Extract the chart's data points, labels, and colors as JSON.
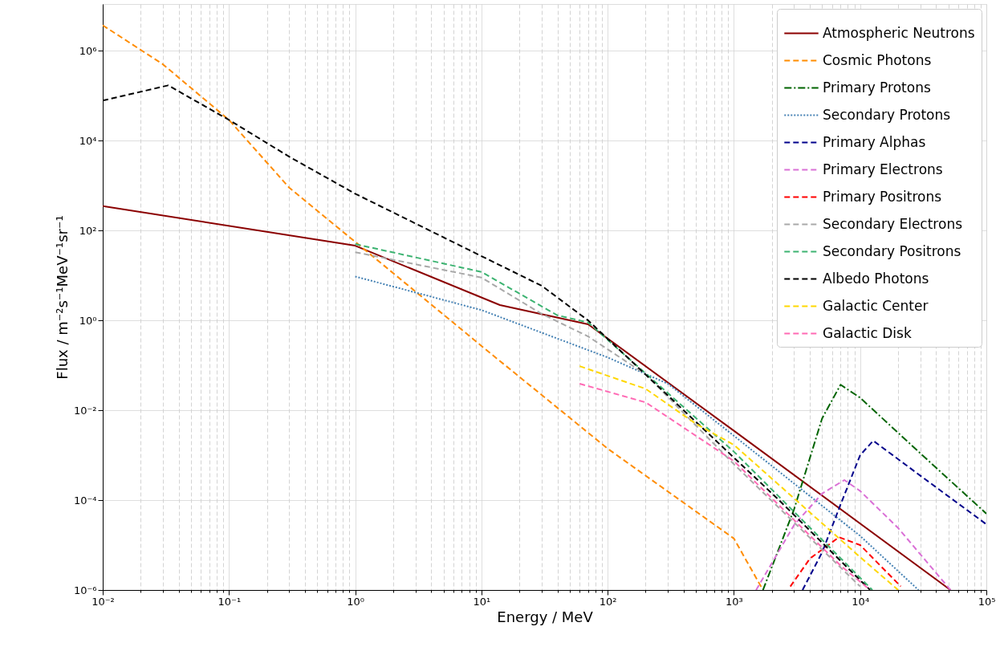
{
  "chart_data": {
    "type": "line",
    "xlabel": "Energy / MeV",
    "ylabel": "Flux / m⁻²s⁻¹MeV⁻¹sr⁻¹",
    "log": "xy",
    "grid": true,
    "legend": "top right",
    "xlim": [
      0.01,
      100000
    ],
    "ylim": [
      1e-06,
      11000000.0
    ],
    "xticks": [
      {
        "value": 0.01,
        "label": "10⁻²"
      },
      {
        "value": 0.02,
        "label": null
      },
      {
        "value": 0.03,
        "label": null
      },
      {
        "value": 0.04,
        "label": null
      },
      {
        "value": 0.05,
        "label": null
      },
      {
        "value": 0.06,
        "label": null
      },
      {
        "value": 0.07,
        "label": null
      },
      {
        "value": 0.08,
        "label": null
      },
      {
        "value": 0.09,
        "label": null
      },
      {
        "value": 0.1,
        "label": "10⁻¹"
      },
      {
        "value": 0.2,
        "label": null
      },
      {
        "value": 0.3,
        "label": null
      },
      {
        "value": 0.4,
        "label": null
      },
      {
        "value": 0.5,
        "label": null
      },
      {
        "value": 0.6,
        "label": null
      },
      {
        "value": 0.7,
        "label": null
      },
      {
        "value": 0.8,
        "label": null
      },
      {
        "value": 0.9,
        "label": null
      },
      {
        "value": 1,
        "label": "10⁰"
      },
      {
        "value": 2,
        "label": null
      },
      {
        "value": 3,
        "label": null
      },
      {
        "value": 4,
        "label": null
      },
      {
        "value": 5,
        "label": null
      },
      {
        "value": 6,
        "label": null
      },
      {
        "value": 7,
        "label": null
      },
      {
        "value": 8,
        "label": null
      },
      {
        "value": 9,
        "label": null
      },
      {
        "value": 10,
        "label": "10¹"
      },
      {
        "value": 20,
        "label": null
      },
      {
        "value": 30,
        "label": null
      },
      {
        "value": 40,
        "label": null
      },
      {
        "value": 50,
        "label": null
      },
      {
        "value": 60,
        "label": null
      },
      {
        "value": 70,
        "label": null
      },
      {
        "value": 80,
        "label": null
      },
      {
        "value": 90,
        "label": null
      },
      {
        "value": 100,
        "label": "10²"
      },
      {
        "value": 200,
        "label": null
      },
      {
        "value": 300,
        "label": null
      },
      {
        "value": 400,
        "label": null
      },
      {
        "value": 500,
        "label": null
      },
      {
        "value": 600,
        "label": null
      },
      {
        "value": 700,
        "label": null
      },
      {
        "value": 800,
        "label": null
      },
      {
        "value": 900,
        "label": null
      },
      {
        "value": 1000,
        "label": "10³"
      },
      {
        "value": 2000,
        "label": null
      },
      {
        "value": 3000,
        "label": null
      },
      {
        "value": 4000,
        "label": null
      },
      {
        "value": 5000,
        "label": null
      },
      {
        "value": 6000,
        "label": null
      },
      {
        "value": 7000,
        "label": null
      },
      {
        "value": 8000,
        "label": null
      },
      {
        "value": 9000,
        "label": null
      },
      {
        "value": 10000,
        "label": "10⁴"
      },
      {
        "value": 20000,
        "label": null
      },
      {
        "value": 30000,
        "label": null
      },
      {
        "value": 40000,
        "label": null
      },
      {
        "value": 50000,
        "label": null
      },
      {
        "value": 60000,
        "label": null
      },
      {
        "value": 70000,
        "label": null
      },
      {
        "value": 80000,
        "label": null
      },
      {
        "value": 90000,
        "label": null
      },
      {
        "value": 100000,
        "label": "10⁵"
      }
    ],
    "yticks": [
      {
        "value": 1e-06,
        "label": "10⁻⁶"
      },
      {
        "value": 0.0001,
        "label": "10⁻⁴"
      },
      {
        "value": 0.01,
        "label": "10⁻²"
      },
      {
        "value": 1,
        "label": "10⁰"
      },
      {
        "value": 100,
        "label": "10²"
      },
      {
        "value": 10000,
        "label": "10⁴"
      },
      {
        "value": 1000000,
        "label": "10⁶"
      }
    ],
    "series": [
      {
        "name": "Atmospheric Neutrons",
        "color": "#8b0000",
        "line_style": "solid",
        "x": [
          0.01,
          1,
          14,
          70,
          1000,
          52000
        ],
        "values": [
          350,
          46,
          2.2,
          0.82,
          0.0035,
          1e-06
        ]
      },
      {
        "name": "Cosmic Photons",
        "color": "#ff8c00",
        "line_style": "dashed",
        "x": [
          0.01,
          0.03,
          0.1,
          0.3,
          1,
          10,
          100,
          1000,
          1700
        ],
        "values": [
          3700000.0,
          500000.0,
          29000.0,
          900,
          56,
          0.27,
          0.0014,
          1.4e-05,
          1e-06
        ]
      },
      {
        "name": "Primary Protons",
        "color": "#006400",
        "line_style": "dashdot",
        "x": [
          1700,
          3000,
          5000,
          7000,
          10000,
          30000,
          100000
        ],
        "values": [
          1e-06,
          6.3e-05,
          0.0066,
          0.037,
          0.019,
          0.0011,
          5e-05
        ]
      },
      {
        "name": "Secondary Protons",
        "color": "#4682b4",
        "line_style": "dotted",
        "x": [
          1,
          10,
          100,
          300,
          1000,
          10000,
          29000
        ],
        "values": [
          9.5,
          1.7,
          0.15,
          0.039,
          0.0027,
          1.6e-05,
          1e-06
        ]
      },
      {
        "name": "Primary Alphas",
        "color": "#00008b",
        "line_style": "dashed",
        "x": [
          3500,
          5000,
          7000,
          10000,
          12700,
          30000,
          100000
        ],
        "values": [
          1e-06,
          6.9e-06,
          8e-05,
          0.001,
          0.0021,
          0.00035,
          2.9e-05
        ]
      },
      {
        "name": "Primary Electrons",
        "color": "#da70d6",
        "line_style": "dashed",
        "x": [
          1500,
          3000,
          5000,
          7500,
          10000,
          20000,
          52000
        ],
        "values": [
          1e-06,
          2.8e-05,
          0.00014,
          0.00028,
          0.00016,
          2.4e-05,
          1e-06
        ]
      },
      {
        "name": "Primary Positrons",
        "color": "#ff0000",
        "line_style": "dashed",
        "x": [
          2800,
          4000,
          6800,
          10000,
          21000
        ],
        "values": [
          1.2e-06,
          5e-06,
          1.5e-05,
          1e-05,
          1.2e-06
        ]
      },
      {
        "name": "Secondary Electrons",
        "color": "#a9a9a9",
        "line_style": "dashed",
        "x": [
          1,
          10,
          30,
          70,
          200,
          1000,
          10000
        ],
        "values": [
          33,
          9,
          1.4,
          0.44,
          0.063,
          0.00063,
          1.2e-06
        ]
      },
      {
        "name": "Secondary Positrons",
        "color": "#3cb371",
        "line_style": "dashed",
        "x": [
          1,
          10,
          40,
          70,
          1000,
          12500
        ],
        "values": [
          50,
          12,
          1.3,
          0.9,
          0.0012,
          1e-06
        ]
      },
      {
        "name": "Albedo Photons",
        "color": "#000000",
        "line_style": "dashed",
        "x": [
          0.01,
          0.033,
          0.1,
          0.3,
          1,
          10,
          30,
          70,
          2200,
          12000
        ],
        "values": [
          78000.0,
          170000.0,
          29000.0,
          4400,
          660,
          27,
          5.9,
          1,
          0.00011,
          1e-06
        ]
      },
      {
        "name": "Galactic Center",
        "color": "#ffd700",
        "line_style": "dashed",
        "x": [
          60,
          200,
          500,
          1000,
          10000,
          20000
        ],
        "values": [
          0.096,
          0.03,
          0.005,
          0.0017,
          5.4e-06,
          1e-06
        ]
      },
      {
        "name": "Galactic Disk",
        "color": "#ff69b4",
        "line_style": "dashed",
        "x": [
          60,
          200,
          1000,
          7000,
          12000
        ],
        "values": [
          0.039,
          0.015,
          0.00074,
          3.5e-06,
          1e-06
        ]
      }
    ]
  }
}
